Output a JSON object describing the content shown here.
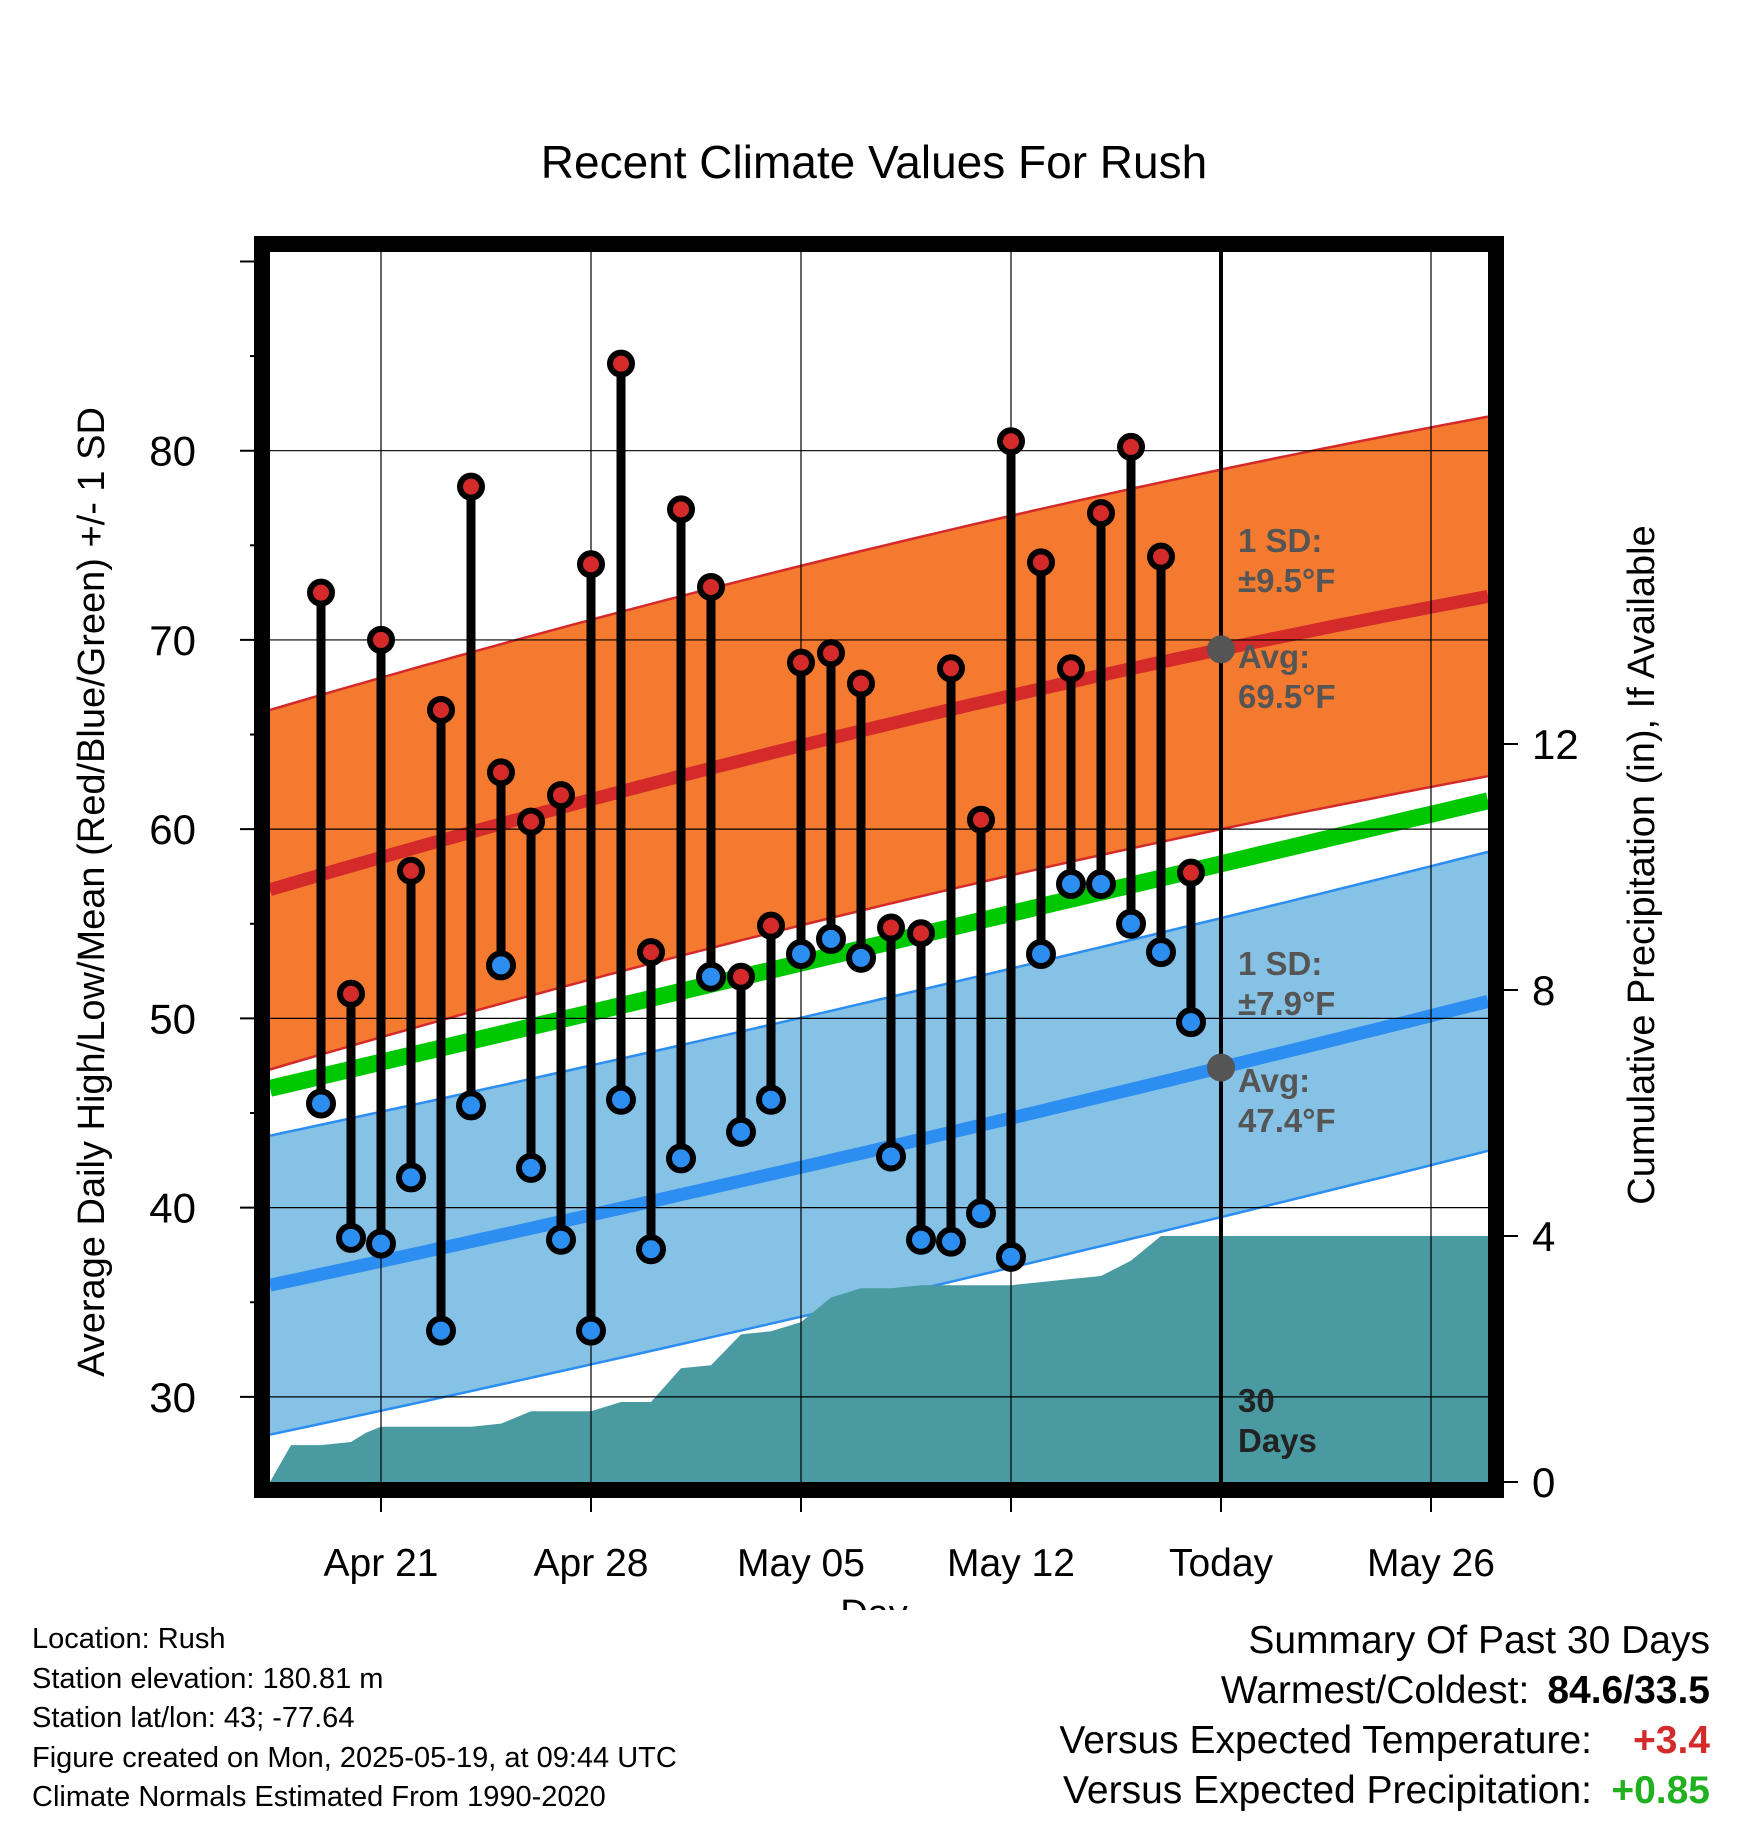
{
  "chart_data": {
    "type": "line",
    "title": "Recent Climate Values For Rush",
    "xlabel": "Day",
    "ylabel": "Average Daily High/Low/Mean (Red/Blue/Green) +/- 1 SD",
    "y2label": "Cumulative Precipitation (in), If Available",
    "ylim": [
      25.5,
      90.5
    ],
    "y2lim": [
      0,
      20
    ],
    "yticks": [
      30,
      40,
      50,
      60,
      70,
      80
    ],
    "y2ticks": [
      0,
      4,
      8,
      12
    ],
    "xticks": [
      {
        "day": 21,
        "label": "Apr 21"
      },
      {
        "day": 28,
        "label": "Apr 28"
      },
      {
        "day": 35,
        "label": "May 05"
      },
      {
        "day": 42,
        "label": "May 12"
      },
      {
        "day": 49,
        "label": "Today"
      },
      {
        "day": 56,
        "label": "May 26"
      }
    ],
    "xlim": [
      17.3,
      57.9
    ],
    "grid": true,
    "today_day": 49,
    "today_label": "30 Days",
    "highs": [
      {
        "day": 19,
        "value": 72.5
      },
      {
        "day": 20,
        "value": 51.3
      },
      {
        "day": 21,
        "value": 70.0
      },
      {
        "day": 22,
        "value": 57.8
      },
      {
        "day": 23,
        "value": 66.3
      },
      {
        "day": 24,
        "value": 78.1
      },
      {
        "day": 25,
        "value": 63.0
      },
      {
        "day": 26,
        "value": 60.4
      },
      {
        "day": 27,
        "value": 61.8
      },
      {
        "day": 28,
        "value": 74.0
      },
      {
        "day": 29,
        "value": 84.6
      },
      {
        "day": 30,
        "value": 53.5
      },
      {
        "day": 31,
        "value": 76.9
      },
      {
        "day": 32,
        "value": 72.8
      },
      {
        "day": 33,
        "value": 52.2
      },
      {
        "day": 34,
        "value": 54.9
      },
      {
        "day": 35,
        "value": 68.8
      },
      {
        "day": 36,
        "value": 69.3
      },
      {
        "day": 37,
        "value": 67.7
      },
      {
        "day": 38,
        "value": 54.8
      },
      {
        "day": 39,
        "value": 54.5
      },
      {
        "day": 40,
        "value": 68.5
      },
      {
        "day": 41,
        "value": 60.5
      },
      {
        "day": 42,
        "value": 80.5
      },
      {
        "day": 43,
        "value": 74.1
      },
      {
        "day": 44,
        "value": 68.5
      },
      {
        "day": 45,
        "value": 76.7
      },
      {
        "day": 46,
        "value": 80.2
      },
      {
        "day": 47,
        "value": 74.4
      },
      {
        "day": 48,
        "value": 57.7
      }
    ],
    "lows": [
      {
        "day": 19,
        "value": 45.5
      },
      {
        "day": 20,
        "value": 38.4
      },
      {
        "day": 21,
        "value": 38.1
      },
      {
        "day": 22,
        "value": 41.6
      },
      {
        "day": 23,
        "value": 33.5
      },
      {
        "day": 24,
        "value": 45.4
      },
      {
        "day": 25,
        "value": 52.8
      },
      {
        "day": 26,
        "value": 42.1
      },
      {
        "day": 27,
        "value": 38.3
      },
      {
        "day": 28,
        "value": 33.5
      },
      {
        "day": 29,
        "value": 45.7
      },
      {
        "day": 30,
        "value": 37.8
      },
      {
        "day": 31,
        "value": 42.6
      },
      {
        "day": 32,
        "value": 52.2
      },
      {
        "day": 33,
        "value": 44.0
      },
      {
        "day": 34,
        "value": 45.7
      },
      {
        "day": 35,
        "value": 53.4
      },
      {
        "day": 36,
        "value": 54.2
      },
      {
        "day": 37,
        "value": 53.2
      },
      {
        "day": 38,
        "value": 42.7
      },
      {
        "day": 39,
        "value": 38.3
      },
      {
        "day": 40,
        "value": 38.2
      },
      {
        "day": 41,
        "value": 39.7
      },
      {
        "day": 42,
        "value": 37.4
      },
      {
        "day": 43,
        "value": 53.4
      },
      {
        "day": 44,
        "value": 57.1
      },
      {
        "day": 45,
        "value": 57.1
      },
      {
        "day": 46,
        "value": 55.0
      },
      {
        "day": 47,
        "value": 53.5
      },
      {
        "day": 48,
        "value": 49.8
      }
    ],
    "normal_high": {
      "start": 56.8,
      "today": 69.5,
      "end": 72.3
    },
    "normal_high_sd": 9.5,
    "normal_low": {
      "start": 35.9,
      "today": 47.4,
      "end": 50.9
    },
    "normal_low_sd": 7.9,
    "normal_mean": {
      "start": 46.3,
      "end": 61.5
    },
    "precip_cumulative": [
      {
        "day": 17.3,
        "value": 0
      },
      {
        "day": 18,
        "value": 0.6
      },
      {
        "day": 19,
        "value": 0.6
      },
      {
        "day": 20,
        "value": 0.65
      },
      {
        "day": 20.5,
        "value": 0.8
      },
      {
        "day": 21,
        "value": 0.9
      },
      {
        "day": 22,
        "value": 0.9
      },
      {
        "day": 23,
        "value": 0.9
      },
      {
        "day": 24,
        "value": 0.9
      },
      {
        "day": 25,
        "value": 0.95
      },
      {
        "day": 26,
        "value": 1.15
      },
      {
        "day": 27,
        "value": 1.15
      },
      {
        "day": 28,
        "value": 1.15
      },
      {
        "day": 29,
        "value": 1.3
      },
      {
        "day": 30,
        "value": 1.3
      },
      {
        "day": 31,
        "value": 1.85
      },
      {
        "day": 32,
        "value": 1.9
      },
      {
        "day": 33,
        "value": 2.4
      },
      {
        "day": 34,
        "value": 2.45
      },
      {
        "day": 35,
        "value": 2.6
      },
      {
        "day": 36,
        "value": 3.0
      },
      {
        "day": 37,
        "value": 3.15
      },
      {
        "day": 38,
        "value": 3.15
      },
      {
        "day": 39,
        "value": 3.2
      },
      {
        "day": 40,
        "value": 3.2
      },
      {
        "day": 41,
        "value": 3.2
      },
      {
        "day": 42,
        "value": 3.2
      },
      {
        "day": 43,
        "value": 3.25
      },
      {
        "day": 44,
        "value": 3.3
      },
      {
        "day": 45,
        "value": 3.35
      },
      {
        "day": 46,
        "value": 3.6
      },
      {
        "day": 47,
        "value": 4.0
      },
      {
        "day": 48,
        "value": 4.0
      },
      {
        "day": 49,
        "value": 4.0
      },
      {
        "day": 57.9,
        "value": 4.0
      }
    ],
    "annotations": {
      "high_sd_label": [
        "1 SD:",
        "±9.5°F"
      ],
      "high_avg_label": [
        "Avg:",
        "69.5°F"
      ],
      "low_sd_label": [
        "1 SD:",
        "±7.9°F"
      ],
      "low_avg_label": [
        "Avg:",
        "47.4°F"
      ],
      "days_label": [
        "30",
        "Days"
      ]
    },
    "colors": {
      "high_band": "#f47a30",
      "high_line": "#d42a2a",
      "low_band": "#86c1e6",
      "low_line": "#2c8ef0",
      "mean_line": "#00c800",
      "precip": "#4a9aa2",
      "high_dot": "#d42a2a",
      "low_dot": "#2c8ef0",
      "annotation": "#555555"
    }
  },
  "info": {
    "location": "Location: Rush",
    "elevation": "Station elevation: 180.81 m",
    "latlon": "Station lat/lon: 43; -77.64",
    "created": "Figure created on Mon, 2025-05-19, at 09:44 UTC",
    "normals": "Climate Normals Estimated From 1990-2020"
  },
  "summary": {
    "title": "Summary Of Past 30 Days",
    "warm_cold_label": "Warmest/Coldest:",
    "warm_cold_value": "84.6/33.5",
    "temp_label": "Versus Expected Temperature:",
    "temp_value": "+3.4",
    "temp_color": "#d42a2a",
    "precip_label": "Versus Expected Precipitation:",
    "precip_value": "+0.85",
    "precip_color": "#20b020"
  }
}
